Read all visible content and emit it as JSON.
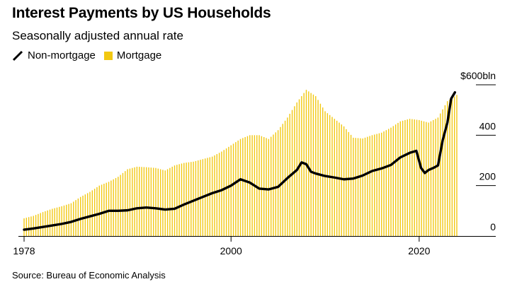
{
  "title": "Interest Payments by US Households",
  "subtitle": "Seasonally adjusted annual rate",
  "source": "Source: Bureau of Economic Analysis",
  "colors": {
    "mortgage": "#f2c811",
    "non_mortgage": "#000000",
    "axis": "#000000"
  },
  "chart_data": {
    "type": "bar",
    "y_unit_label": "$600bln",
    "ylim": [
      0,
      600
    ],
    "xlim": [
      1978,
      2024
    ],
    "y_ticks": [
      {
        "value": 0,
        "label": "0"
      },
      {
        "value": 200,
        "label": "200"
      },
      {
        "value": 400,
        "label": "400"
      },
      {
        "value": 600,
        "label": "$600bln"
      }
    ],
    "x_ticks": [
      {
        "value": 1978,
        "label": "1978"
      },
      {
        "value": 2000,
        "label": "2000"
      },
      {
        "value": 2020,
        "label": "2020"
      }
    ],
    "legend": {
      "placement": "top-left"
    },
    "series": [
      {
        "name": "Non-mortgage",
        "style": "line",
        "points": [
          [
            1978,
            25
          ],
          [
            1979,
            30
          ],
          [
            1980,
            36
          ],
          [
            1981,
            42
          ],
          [
            1982,
            48
          ],
          [
            1983,
            56
          ],
          [
            1984,
            68
          ],
          [
            1985,
            78
          ],
          [
            1986,
            88
          ],
          [
            1987,
            100
          ],
          [
            1988,
            100
          ],
          [
            1989,
            102
          ],
          [
            1990,
            110
          ],
          [
            1991,
            113
          ],
          [
            1992,
            110
          ],
          [
            1993,
            105
          ],
          [
            1994,
            108
          ],
          [
            1995,
            125
          ],
          [
            1996,
            140
          ],
          [
            1997,
            155
          ],
          [
            1998,
            170
          ],
          [
            1999,
            182
          ],
          [
            2000,
            200
          ],
          [
            2001,
            225
          ],
          [
            2002,
            212
          ],
          [
            2003,
            188
          ],
          [
            2004,
            185
          ],
          [
            2005,
            195
          ],
          [
            2006,
            230
          ],
          [
            2007,
            262
          ],
          [
            2007.5,
            292
          ],
          [
            2008,
            285
          ],
          [
            2008.5,
            255
          ],
          [
            2009,
            248
          ],
          [
            2010,
            238
          ],
          [
            2011,
            232
          ],
          [
            2012,
            225
          ],
          [
            2013,
            228
          ],
          [
            2014,
            240
          ],
          [
            2015,
            258
          ],
          [
            2016,
            268
          ],
          [
            2017,
            282
          ],
          [
            2018,
            312
          ],
          [
            2019,
            330
          ],
          [
            2019.7,
            338
          ],
          [
            2020.2,
            270
          ],
          [
            2020.6,
            250
          ],
          [
            2021,
            262
          ],
          [
            2021.5,
            270
          ],
          [
            2022,
            280
          ],
          [
            2022.5,
            380
          ],
          [
            2023,
            450
          ],
          [
            2023.4,
            545
          ],
          [
            2023.8,
            570
          ]
        ]
      },
      {
        "name": "Mortgage",
        "style": "bar",
        "points": [
          [
            1978,
            70
          ],
          [
            1979,
            80
          ],
          [
            1980,
            95
          ],
          [
            1981,
            108
          ],
          [
            1982,
            118
          ],
          [
            1983,
            130
          ],
          [
            1984,
            155
          ],
          [
            1985,
            175
          ],
          [
            1986,
            200
          ],
          [
            1987,
            215
          ],
          [
            1988,
            235
          ],
          [
            1989,
            265
          ],
          [
            1990,
            275
          ],
          [
            1991,
            273
          ],
          [
            1992,
            270
          ],
          [
            1993,
            260
          ],
          [
            1994,
            280
          ],
          [
            1995,
            290
          ],
          [
            1996,
            295
          ],
          [
            1997,
            305
          ],
          [
            1998,
            315
          ],
          [
            1999,
            335
          ],
          [
            2000,
            360
          ],
          [
            2001,
            385
          ],
          [
            2002,
            400
          ],
          [
            2003,
            400
          ],
          [
            2004,
            385
          ],
          [
            2005,
            420
          ],
          [
            2006,
            470
          ],
          [
            2007,
            530
          ],
          [
            2008,
            580
          ],
          [
            2009,
            555
          ],
          [
            2010,
            495
          ],
          [
            2011,
            465
          ],
          [
            2012,
            435
          ],
          [
            2013,
            390
          ],
          [
            2014,
            387
          ],
          [
            2015,
            400
          ],
          [
            2016,
            410
          ],
          [
            2017,
            430
          ],
          [
            2018,
            455
          ],
          [
            2019,
            465
          ],
          [
            2020,
            460
          ],
          [
            2021,
            450
          ],
          [
            2022,
            470
          ],
          [
            2023,
            535
          ],
          [
            2024,
            560
          ]
        ]
      }
    ]
  }
}
